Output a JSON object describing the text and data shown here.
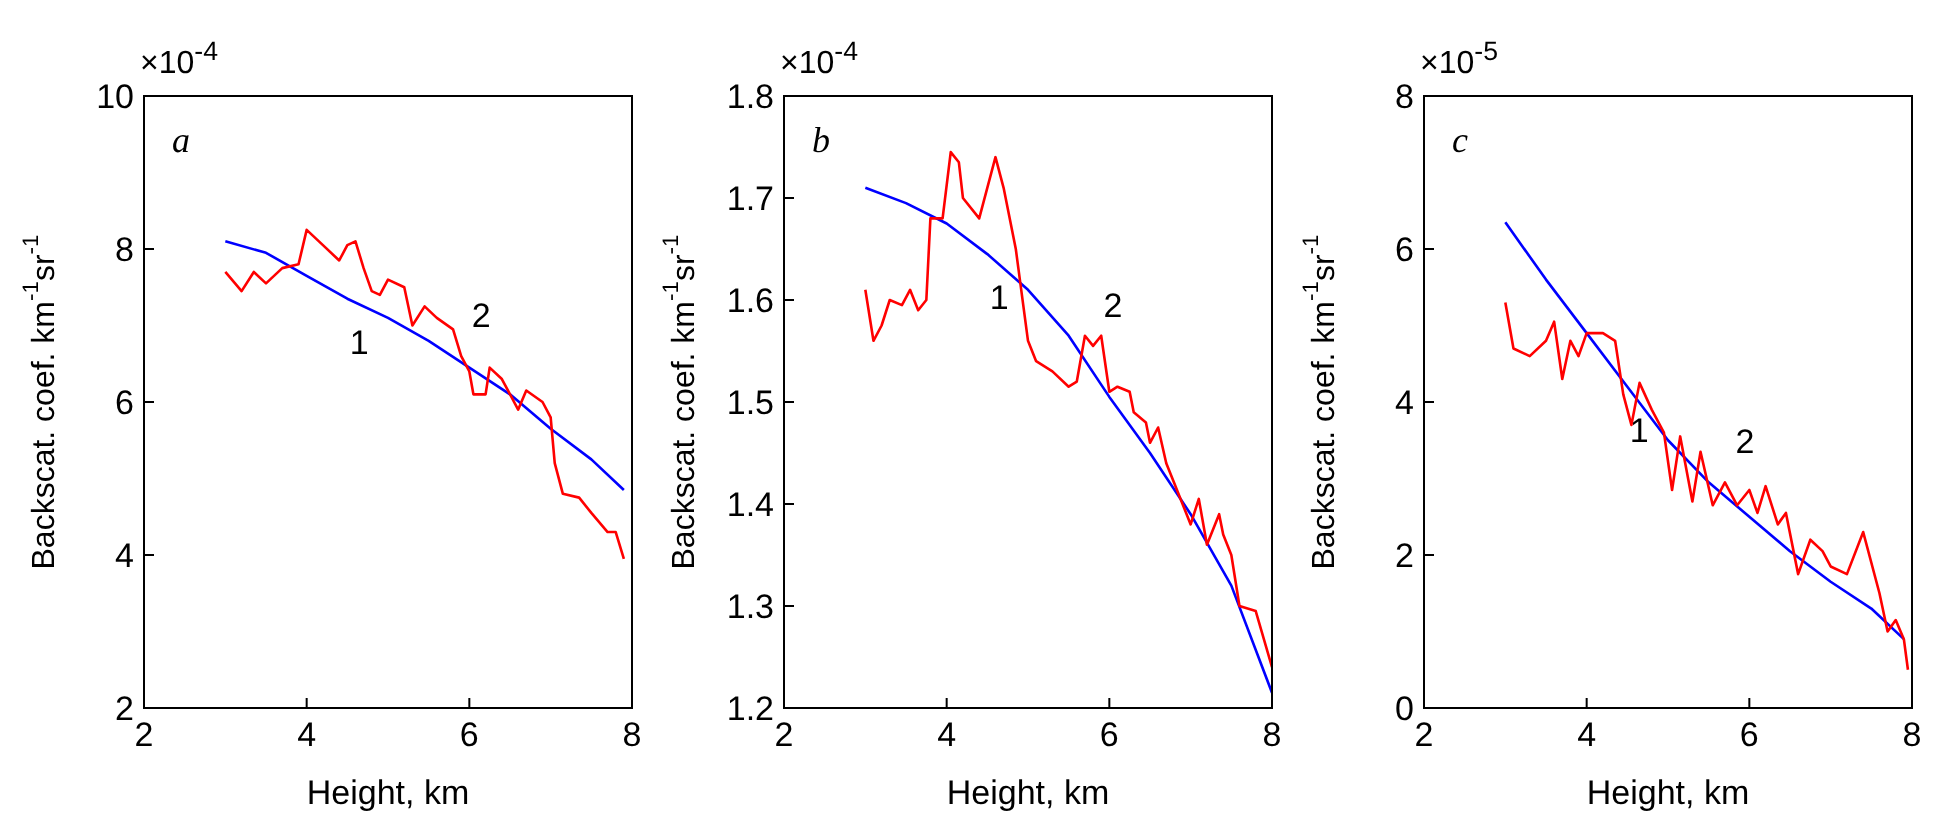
{
  "chart_data": [
    {
      "type": "line",
      "title": "a",
      "xlabel": "Height, km",
      "ylabel": "Backscat. coef. km$^{-1}$sr$^{-1}$",
      "xlim": [
        2,
        8
      ],
      "xticks": [
        2,
        4,
        6,
        8
      ],
      "ylim": [
        2,
        10
      ],
      "yticks": [
        2,
        4,
        6,
        8,
        10
      ],
      "marker": "none",
      "annotations": [
        "×10$^{-4}$"
      ],
      "series": [
        {
          "name": "1",
          "color": "#0000ff",
          "x": [
            3,
            3.5,
            4,
            4.5,
            5,
            5.5,
            6,
            6.5,
            7,
            7.5,
            7.9
          ],
          "values": [
            8.1,
            7.95,
            7.65,
            7.35,
            7.1,
            6.8,
            6.45,
            6.1,
            5.65,
            5.25,
            4.85
          ]
        },
        {
          "name": "2",
          "color": "#ff0000",
          "x": [
            3,
            3.2,
            3.35,
            3.5,
            3.7,
            3.9,
            4.0,
            4.2,
            4.4,
            4.5,
            4.6,
            4.7,
            4.8,
            4.9,
            5.0,
            5.2,
            5.3,
            5.45,
            5.6,
            5.8,
            5.9,
            6.0,
            6.05,
            6.2,
            6.25,
            6.4,
            6.6,
            6.7,
            6.9,
            7.0,
            7.05,
            7.15,
            7.35,
            7.5,
            7.7,
            7.8,
            7.9
          ],
          "values": [
            7.7,
            7.45,
            7.7,
            7.55,
            7.75,
            7.8,
            8.25,
            8.05,
            7.85,
            8.05,
            8.1,
            7.75,
            7.45,
            7.4,
            7.6,
            7.5,
            7.0,
            7.25,
            7.1,
            6.95,
            6.6,
            6.4,
            6.1,
            6.1,
            6.45,
            6.3,
            5.9,
            6.15,
            6.0,
            5.8,
            5.2,
            4.8,
            4.75,
            4.55,
            4.3,
            4.3,
            3.95
          ]
        }
      ]
    },
    {
      "type": "line",
      "title": "b",
      "xlabel": "Height, km",
      "ylabel": "Backscat. coef. km$^{-1}$sr$^{-1}$",
      "xlim": [
        2,
        8
      ],
      "xticks": [
        2,
        4,
        6,
        8
      ],
      "ylim": [
        1.2,
        1.8
      ],
      "yticks": [
        1.2,
        1.3,
        1.4,
        1.5,
        1.6,
        1.7,
        1.8
      ],
      "marker": "none",
      "annotations": [
        "×10$^{-4}$"
      ],
      "series": [
        {
          "name": "1",
          "color": "#0000ff",
          "x": [
            3,
            3.5,
            4,
            4.5,
            5,
            5.5,
            6,
            6.5,
            7,
            7.5,
            8
          ],
          "values": [
            1.71,
            1.695,
            1.675,
            1.645,
            1.61,
            1.565,
            1.505,
            1.45,
            1.39,
            1.32,
            1.215
          ]
        },
        {
          "name": "2",
          "color": "#ff0000",
          "x": [
            3,
            3.1,
            3.2,
            3.3,
            3.45,
            3.55,
            3.65,
            3.75,
            3.8,
            3.95,
            4.05,
            4.15,
            4.2,
            4.4,
            4.6,
            4.7,
            4.85,
            4.9,
            5.0,
            5.1,
            5.3,
            5.5,
            5.6,
            5.7,
            5.8,
            5.9,
            6.0,
            6.1,
            6.25,
            6.3,
            6.45,
            6.5,
            6.6,
            6.7,
            6.8,
            6.9,
            7.0,
            7.1,
            7.2,
            7.35,
            7.4,
            7.5,
            7.6,
            7.8,
            8.0
          ],
          "values": [
            1.61,
            1.56,
            1.575,
            1.6,
            1.595,
            1.61,
            1.59,
            1.6,
            1.68,
            1.68,
            1.745,
            1.735,
            1.7,
            1.68,
            1.74,
            1.71,
            1.65,
            1.62,
            1.56,
            1.54,
            1.53,
            1.515,
            1.52,
            1.565,
            1.555,
            1.565,
            1.51,
            1.515,
            1.51,
            1.49,
            1.48,
            1.46,
            1.475,
            1.44,
            1.42,
            1.4,
            1.38,
            1.405,
            1.36,
            1.39,
            1.37,
            1.35,
            1.3,
            1.295,
            1.24
          ]
        }
      ]
    },
    {
      "type": "line",
      "title": "c",
      "xlabel": "Height, km",
      "ylabel": "Backscat. coef. km$^{-1}$sr$^{-1}$",
      "xlim": [
        2,
        8
      ],
      "xticks": [
        2,
        4,
        6,
        8
      ],
      "ylim": [
        0,
        8
      ],
      "yticks": [
        0,
        2,
        4,
        6,
        8
      ],
      "marker": "none",
      "annotations": [
        "×10$^{-5}$"
      ],
      "series": [
        {
          "name": "1",
          "color": "#0000ff",
          "x": [
            3,
            3.5,
            4,
            4.5,
            5,
            5.5,
            6,
            6.5,
            7,
            7.5,
            7.9
          ],
          "values": [
            6.35,
            5.6,
            4.9,
            4.2,
            3.5,
            2.95,
            2.5,
            2.05,
            1.65,
            1.3,
            0.9
          ]
        },
        {
          "name": "2",
          "color": "#ff0000",
          "x": [
            3,
            3.1,
            3.3,
            3.5,
            3.6,
            3.7,
            3.8,
            3.9,
            4.0,
            4.2,
            4.35,
            4.45,
            4.55,
            4.65,
            4.8,
            4.95,
            5.05,
            5.15,
            5.3,
            5.4,
            5.55,
            5.7,
            5.85,
            6.0,
            6.1,
            6.2,
            6.35,
            6.45,
            6.6,
            6.75,
            6.9,
            7.0,
            7.2,
            7.4,
            7.6,
            7.7,
            7.8,
            7.9,
            7.95
          ],
          "values": [
            5.3,
            4.7,
            4.6,
            4.8,
            5.05,
            4.3,
            4.8,
            4.6,
            4.9,
            4.9,
            4.8,
            4.1,
            3.7,
            4.25,
            3.9,
            3.6,
            2.85,
            3.55,
            2.7,
            3.35,
            2.65,
            2.95,
            2.65,
            2.85,
            2.55,
            2.9,
            2.4,
            2.55,
            1.75,
            2.2,
            2.05,
            1.85,
            1.75,
            2.3,
            1.5,
            1.0,
            1.15,
            0.9,
            0.5
          ]
        }
      ]
    }
  ]
}
